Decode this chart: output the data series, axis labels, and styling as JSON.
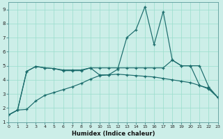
{
  "title": "",
  "xlabel": "Humidex (Indice chaleur)",
  "background_color": "#cceee8",
  "grid_color": "#99ddcc",
  "line_color": "#1a6b6b",
  "x": [
    0,
    1,
    2,
    3,
    4,
    5,
    6,
    7,
    8,
    9,
    10,
    11,
    12,
    13,
    14,
    15,
    16,
    17,
    18,
    19,
    20,
    21,
    22,
    23
  ],
  "series1": [
    1.5,
    1.85,
    4.6,
    4.95,
    4.85,
    4.8,
    4.65,
    4.65,
    4.65,
    4.85,
    4.35,
    4.35,
    4.75,
    7.0,
    7.55,
    9.2,
    6.5,
    8.85,
    5.4,
    5.0,
    5.0,
    3.6,
    3.4,
    2.75
  ],
  "series2": [
    1.5,
    1.85,
    1.9,
    2.5,
    2.9,
    3.1,
    3.3,
    3.5,
    3.75,
    4.05,
    4.3,
    4.35,
    4.4,
    4.35,
    4.3,
    4.25,
    4.2,
    4.1,
    4.0,
    3.9,
    3.8,
    3.6,
    3.35,
    2.75
  ],
  "series3": [
    1.5,
    1.85,
    4.6,
    4.95,
    4.85,
    4.8,
    4.7,
    4.7,
    4.7,
    4.85,
    4.85,
    4.85,
    4.85,
    4.85,
    4.85,
    4.85,
    4.85,
    4.85,
    5.4,
    5.0,
    5.0,
    5.0,
    3.5,
    2.75
  ],
  "xlim": [
    0,
    23
  ],
  "ylim": [
    1,
    9.5
  ],
  "xticks": [
    0,
    1,
    2,
    3,
    4,
    5,
    6,
    7,
    8,
    9,
    10,
    11,
    12,
    13,
    14,
    15,
    16,
    17,
    18,
    19,
    20,
    21,
    22,
    23
  ],
  "yticks": [
    1,
    2,
    3,
    4,
    5,
    6,
    7,
    8,
    9
  ]
}
